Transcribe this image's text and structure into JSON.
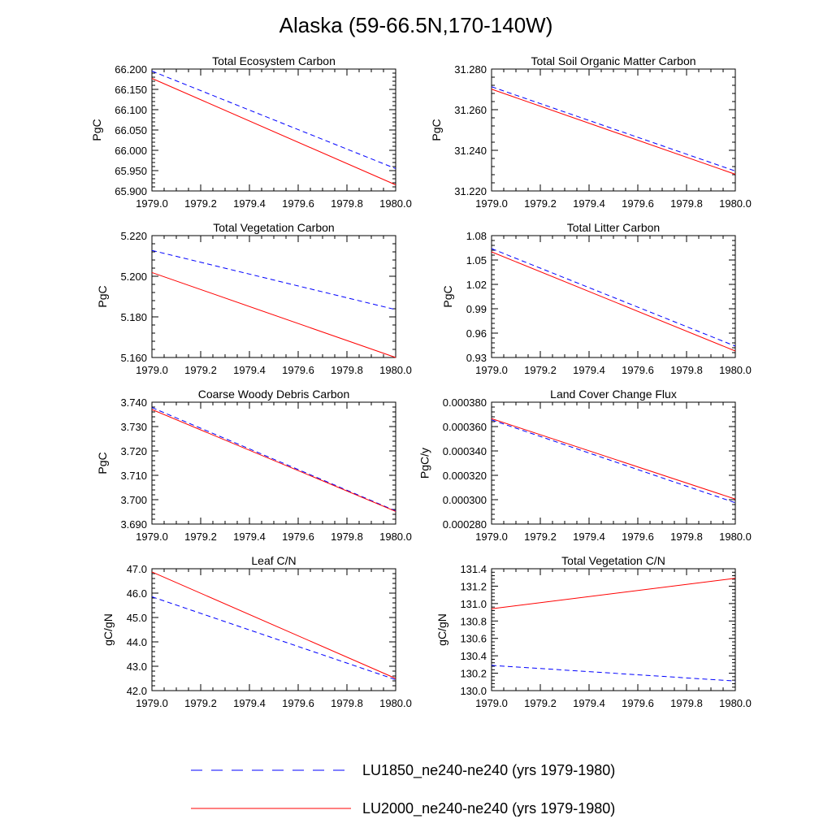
{
  "figure": {
    "title": "Alaska (59-66.5N,170-140W)",
    "legend": [
      {
        "label": "LU1850_ne240-ne240 (yrs 1979-1980)",
        "color": "#0000ff",
        "dash": "dashed"
      },
      {
        "label": "LU2000_ne240-ne240 (yrs 1979-1980)",
        "color": "#ff0000",
        "dash": "solid"
      }
    ],
    "legend_position": "bottom-center"
  },
  "chart_data": [
    {
      "type": "line",
      "title": "Total Ecosystem Carbon",
      "ylabel": "PgC",
      "xlabel": "",
      "x": [
        1979.0,
        1980.0
      ],
      "xlim": [
        1979.0,
        1980.0
      ],
      "xticks": [
        "1979.0",
        "1979.2",
        "1979.4",
        "1979.6",
        "1979.8",
        "1980.0"
      ],
      "ylim": [
        65.9,
        66.2
      ],
      "yticks": [
        "65.900",
        "65.950",
        "66.000",
        "66.050",
        "66.100",
        "66.150",
        "66.200"
      ],
      "series": [
        {
          "name": "LU1850_ne240-ne240 (yrs 1979-1980)",
          "values": [
            66.195,
            65.955
          ]
        },
        {
          "name": "LU2000_ne240-ne240 (yrs 1979-1980)",
          "values": [
            66.177,
            65.915
          ]
        }
      ]
    },
    {
      "type": "line",
      "title": "Total Soil Organic Matter Carbon",
      "ylabel": "PgC",
      "xlabel": "",
      "x": [
        1979.0,
        1980.0
      ],
      "xlim": [
        1979.0,
        1980.0
      ],
      "xticks": [
        "1979.0",
        "1979.2",
        "1979.4",
        "1979.6",
        "1979.8",
        "1980.0"
      ],
      "ylim": [
        31.22,
        31.28
      ],
      "yticks": [
        "31.220",
        "31.240",
        "31.260",
        "31.280"
      ],
      "series": [
        {
          "name": "LU1850_ne240-ne240 (yrs 1979-1980)",
          "values": [
            31.2713,
            31.2298
          ]
        },
        {
          "name": "LU2000_ne240-ne240 (yrs 1979-1980)",
          "values": [
            31.2701,
            31.2282
          ]
        }
      ]
    },
    {
      "type": "line",
      "title": "Total Vegetation Carbon",
      "ylabel": "PgC",
      "xlabel": "",
      "x": [
        1979.0,
        1980.0
      ],
      "xlim": [
        1979.0,
        1980.0
      ],
      "xticks": [
        "1979.0",
        "1979.2",
        "1979.4",
        "1979.6",
        "1979.8",
        "1980.0"
      ],
      "ylim": [
        5.16,
        5.23
      ],
      "yticks": [
        "5.160",
        "5.180",
        "5.200",
        "5.220"
      ],
      "series": [
        {
          "name": "LU1850_ne240-ne240 (yrs 1979-1980)",
          "values": [
            5.2215,
            5.1875
          ]
        },
        {
          "name": "LU2000_ne240-ne240 (yrs 1979-1980)",
          "values": [
            5.2088,
            5.16
          ]
        }
      ]
    },
    {
      "type": "line",
      "title": "Total Litter Carbon",
      "ylabel": "PgC",
      "xlabel": "",
      "x": [
        1979.0,
        1980.0
      ],
      "xlim": [
        1979.0,
        1980.0
      ],
      "xticks": [
        "1979.0",
        "1979.2",
        "1979.4",
        "1979.6",
        "1979.8",
        "1980.0"
      ],
      "ylim": [
        0.93,
        1.08
      ],
      "yticks": [
        "0.93",
        "0.96",
        "0.99",
        "1.02",
        "1.05",
        "1.08"
      ],
      "series": [
        {
          "name": "LU1850_ne240-ne240 (yrs 1979-1980)",
          "values": [
            1.064,
            0.944
          ]
        },
        {
          "name": "LU2000_ne240-ne240 (yrs 1979-1980)",
          "values": [
            1.06,
            0.938
          ]
        }
      ]
    },
    {
      "type": "line",
      "title": "Coarse Woody Debris Carbon",
      "ylabel": "PgC",
      "xlabel": "",
      "x": [
        1979.0,
        1980.0
      ],
      "xlim": [
        1979.0,
        1980.0
      ],
      "xticks": [
        "1979.0",
        "1979.2",
        "1979.4",
        "1979.6",
        "1979.8",
        "1980.0"
      ],
      "ylim": [
        3.69,
        3.74
      ],
      "yticks": [
        "3.690",
        "3.700",
        "3.710",
        "3.720",
        "3.730",
        "3.740"
      ],
      "series": [
        {
          "name": "LU1850_ne240-ne240 (yrs 1979-1980)",
          "values": [
            3.7378,
            3.6954
          ]
        },
        {
          "name": "LU2000_ne240-ne240 (yrs 1979-1980)",
          "values": [
            3.737,
            3.6952
          ]
        }
      ]
    },
    {
      "type": "line",
      "title": "Land Cover Change Flux",
      "ylabel": "PgC/y",
      "xlabel": "",
      "x": [
        1979.0,
        1980.0
      ],
      "xlim": [
        1979.0,
        1980.0
      ],
      "xticks": [
        "1979.0",
        "1979.2",
        "1979.4",
        "1979.6",
        "1979.8",
        "1980.0"
      ],
      "ylim": [
        0.00028,
        0.00038
      ],
      "yticks": [
        "0.000280",
        "0.000300",
        "0.000320",
        "0.000340",
        "0.000360",
        "0.000380"
      ],
      "series": [
        {
          "name": "LU1850_ne240-ne240 (yrs 1979-1980)",
          "values": [
            0.0003655,
            0.0002975
          ]
        },
        {
          "name": "LU2000_ne240-ne240 (yrs 1979-1980)",
          "values": [
            0.0003665,
            0.0003005
          ]
        }
      ]
    },
    {
      "type": "line",
      "title": "Leaf C/N",
      "ylabel": "gC/gN",
      "xlabel": "",
      "x": [
        1979.0,
        1980.0
      ],
      "xlim": [
        1979.0,
        1980.0
      ],
      "xticks": [
        "1979.0",
        "1979.2",
        "1979.4",
        "1979.6",
        "1979.8",
        "1980.0"
      ],
      "ylim": [
        42.0,
        47.0
      ],
      "yticks": [
        "42.0",
        "43.0",
        "44.0",
        "45.0",
        "46.0",
        "47.0"
      ],
      "series": [
        {
          "name": "LU1850_ne240-ne240 (yrs 1979-1980)",
          "values": [
            45.85,
            42.45
          ]
        },
        {
          "name": "LU2000_ne240-ne240 (yrs 1979-1980)",
          "values": [
            46.87,
            42.5
          ]
        }
      ]
    },
    {
      "type": "line",
      "title": "Total Vegetation C/N",
      "ylabel": "gC/gN",
      "xlabel": "",
      "x": [
        1979.0,
        1980.0
      ],
      "xlim": [
        1979.0,
        1980.0
      ],
      "xticks": [
        "1979.0",
        "1979.2",
        "1979.4",
        "1979.6",
        "1979.8",
        "1980.0"
      ],
      "ylim": [
        130.0,
        131.4
      ],
      "yticks": [
        "130.0",
        "130.2",
        "130.4",
        "130.6",
        "130.8",
        "131.0",
        "131.2",
        "131.4"
      ],
      "series": [
        {
          "name": "LU1850_ne240-ne240 (yrs 1979-1980)",
          "values": [
            130.29,
            130.11
          ]
        },
        {
          "name": "LU2000_ne240-ne240 (yrs 1979-1980)",
          "values": [
            130.94,
            131.29
          ]
        }
      ]
    }
  ]
}
